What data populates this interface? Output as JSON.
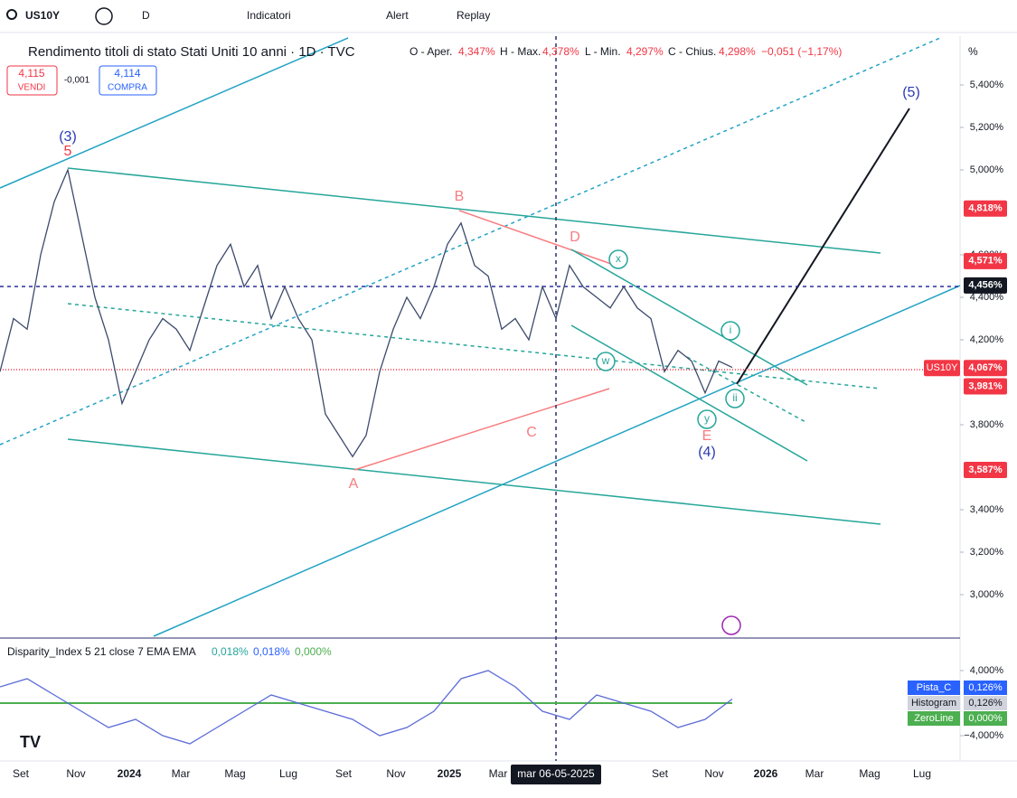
{
  "toolbar": {
    "symbol": "US10Y",
    "interval": "D",
    "indicators": "Indicatori",
    "alert": "Alert",
    "replay": "Replay"
  },
  "legend": {
    "title": "Rendimento titoli di stato Stati Uniti 10 anni · 1D · TVC",
    "open_label": "O - Aper.",
    "open": "4,347%",
    "high_label": "H - Max.",
    "high": "4,378%",
    "low_label": "L - Min.",
    "low": "4,297%",
    "close_label": "C - Chius.",
    "close": "4,298%",
    "change": "−0,051 (−1,17%)"
  },
  "trade": {
    "sell": "4,115",
    "sell_label": "VENDI",
    "spread": "-0,001",
    "buy": "4,114",
    "buy_label": "COMPRA"
  },
  "price_scale": {
    "unit": "%",
    "ticks": [
      {
        "value": 5.4,
        "label": "5,400%"
      },
      {
        "value": 5.2,
        "label": "5,200%"
      },
      {
        "value": 5.0,
        "label": "5,000%"
      },
      {
        "value": 4.6,
        "label": "4,600%"
      },
      {
        "value": 4.4,
        "label": "4,400%"
      },
      {
        "value": 4.2,
        "label": "4,200%"
      },
      {
        "value": 3.8,
        "label": "3,800%"
      },
      {
        "value": 3.4,
        "label": "3,400%"
      },
      {
        "value": 3.2,
        "label": "3,200%"
      },
      {
        "value": 3.0,
        "label": "3,000%"
      }
    ],
    "badges": [
      {
        "value": 4.818,
        "label": "4,818%",
        "color": "#f23645"
      },
      {
        "value": 4.571,
        "label": "4,571%",
        "color": "#f23645"
      },
      {
        "value": 4.456,
        "label": "4,456%",
        "color": "#131722"
      },
      {
        "value": 4.067,
        "label": "4,067%",
        "color": "#f23645"
      },
      {
        "value": 3.981,
        "label": "3,981%",
        "color": "#f23645"
      },
      {
        "value": 3.587,
        "label": "3,587%",
        "color": "#f23645"
      }
    ],
    "symbol_tag": "US10Y"
  },
  "price_series": {
    "values": [
      4.05,
      4.3,
      4.25,
      4.6,
      4.85,
      5.0,
      4.7,
      4.4,
      4.2,
      3.9,
      4.05,
      4.2,
      4.3,
      4.25,
      4.15,
      4.35,
      4.55,
      4.65,
      4.45,
      4.55,
      4.3,
      4.45,
      4.3,
      4.2,
      3.85,
      3.75,
      3.65,
      3.75,
      4.05,
      4.25,
      4.4,
      4.3,
      4.45,
      4.65,
      4.75,
      4.55,
      4.5,
      4.25,
      4.3,
      4.2,
      4.45,
      4.3,
      4.55,
      4.45,
      4.4,
      4.35,
      4.45,
      4.35,
      4.3,
      4.05,
      4.15,
      4.1,
      3.95,
      4.1,
      4.07
    ]
  },
  "wave_labels": [
    "(3)",
    "5",
    "B",
    "D",
    "x",
    "A",
    "C",
    "i",
    "w",
    "ii",
    "y",
    "E",
    "(4)",
    "(5)"
  ],
  "time_axis": {
    "labels": [
      "Set",
      "Nov",
      "2024",
      "Mar",
      "Mag",
      "Lug",
      "Set",
      "Nov",
      "2025",
      "Mar",
      "Set",
      "Nov",
      "2026",
      "Mar",
      "Mag",
      "Lug"
    ],
    "crosshair": "mar 06-05-2025"
  },
  "indicator": {
    "title": "Disparity_Index 5 21 close 7 EMA EMA",
    "v1": "0,018%",
    "v2": "0,018%",
    "v3": "0,000%",
    "ticks": [
      {
        "value": 4,
        "label": "4,000%"
      },
      {
        "value": -4,
        "label": "−4,000%"
      }
    ],
    "values": [
      2,
      3,
      1,
      -1,
      -3,
      -2,
      -4,
      -5,
      -3,
      -1,
      1,
      0,
      -1,
      -2,
      -4,
      -3,
      -1,
      3,
      4,
      2,
      -1,
      -2,
      1,
      0,
      -1,
      -3,
      -2,
      0.5
    ],
    "badges": [
      {
        "name": "Pista_C",
        "value": "0,126%"
      },
      {
        "name": "Histogram",
        "value": "0,126%"
      },
      {
        "name": "ZeroLine",
        "value": "0,000%"
      }
    ]
  }
}
